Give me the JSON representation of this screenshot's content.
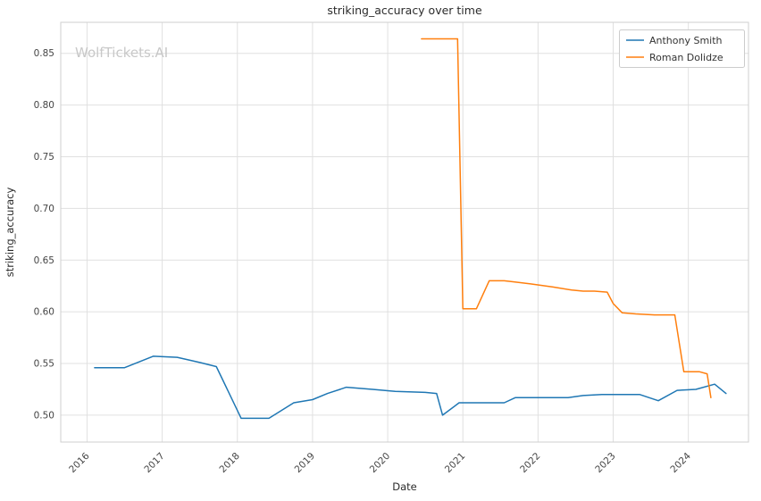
{
  "watermark": "WolfTickets.AI",
  "chart_data": {
    "type": "line",
    "title": "striking_accuracy over time",
    "xlabel": "Date",
    "ylabel": "striking_accuracy",
    "x_ticks": [
      2016,
      2017,
      2018,
      2019,
      2020,
      2021,
      2022,
      2023,
      2024
    ],
    "y_ticks": [
      0.5,
      0.55,
      0.6,
      0.65,
      0.7,
      0.75,
      0.8,
      0.85
    ],
    "xlim": [
      2015.65,
      2024.8
    ],
    "ylim": [
      0.474,
      0.88
    ],
    "grid": true,
    "grid_color": "#e0e0e0",
    "spine_color": "#cfcfcf",
    "legend_position": "upper right",
    "series": [
      {
        "name": "Anthony Smith",
        "color": "#1f77b4",
        "points": [
          [
            2016.1,
            0.546
          ],
          [
            2016.5,
            0.546
          ],
          [
            2016.88,
            0.557
          ],
          [
            2017.2,
            0.556
          ],
          [
            2017.5,
            0.551
          ],
          [
            2017.72,
            0.547
          ],
          [
            2018.05,
            0.497
          ],
          [
            2018.42,
            0.497
          ],
          [
            2018.75,
            0.512
          ],
          [
            2019.0,
            0.515
          ],
          [
            2019.2,
            0.521
          ],
          [
            2019.45,
            0.527
          ],
          [
            2019.8,
            0.525
          ],
          [
            2020.1,
            0.523
          ],
          [
            2020.5,
            0.522
          ],
          [
            2020.65,
            0.521
          ],
          [
            2020.73,
            0.5
          ],
          [
            2020.95,
            0.512
          ],
          [
            2021.3,
            0.512
          ],
          [
            2021.55,
            0.512
          ],
          [
            2021.7,
            0.517
          ],
          [
            2022.1,
            0.517
          ],
          [
            2022.4,
            0.517
          ],
          [
            2022.6,
            0.519
          ],
          [
            2022.85,
            0.52
          ],
          [
            2023.1,
            0.52
          ],
          [
            2023.35,
            0.52
          ],
          [
            2023.6,
            0.514
          ],
          [
            2023.85,
            0.524
          ],
          [
            2024.1,
            0.525
          ],
          [
            2024.35,
            0.53
          ],
          [
            2024.5,
            0.521
          ]
        ]
      },
      {
        "name": "Roman Dolidze",
        "color": "#ff7f0e",
        "points": [
          [
            2020.45,
            0.864
          ],
          [
            2020.7,
            0.864
          ],
          [
            2020.93,
            0.864
          ],
          [
            2021.0,
            0.603
          ],
          [
            2021.18,
            0.603
          ],
          [
            2021.35,
            0.63
          ],
          [
            2021.55,
            0.63
          ],
          [
            2021.68,
            0.629
          ],
          [
            2021.9,
            0.627
          ],
          [
            2022.2,
            0.624
          ],
          [
            2022.45,
            0.621
          ],
          [
            2022.6,
            0.62
          ],
          [
            2022.75,
            0.62
          ],
          [
            2022.92,
            0.619
          ],
          [
            2023.0,
            0.608
          ],
          [
            2023.12,
            0.599
          ],
          [
            2023.3,
            0.598
          ],
          [
            2023.55,
            0.597
          ],
          [
            2023.82,
            0.597
          ],
          [
            2023.94,
            0.542
          ],
          [
            2024.15,
            0.542
          ],
          [
            2024.25,
            0.54
          ],
          [
            2024.3,
            0.517
          ]
        ]
      }
    ]
  }
}
